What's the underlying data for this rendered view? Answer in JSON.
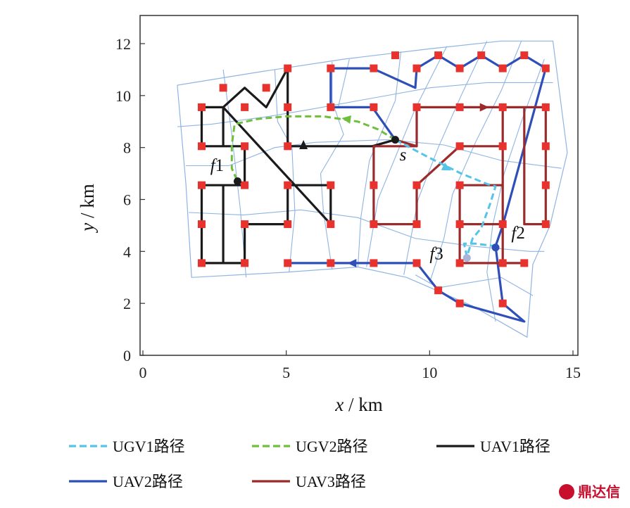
{
  "chart_data": {
    "type": "line",
    "xlabel": "x / km",
    "ylabel": "y / km",
    "xlim": [
      0,
      15
    ],
    "ylim": [
      0,
      13
    ],
    "xticks": [
      0,
      5,
      10,
      15
    ],
    "yticks": [
      0,
      2,
      4,
      6,
      8,
      10,
      12
    ],
    "grid": false,
    "legend_position": "bottom",
    "colors": {
      "mesh": "#8fb4e3",
      "waypoint": "#e8322d",
      "ugv1": "#56c3e8",
      "ugv2": "#6fbf3c",
      "uav1": "#1a1a1a",
      "uav2": "#2f4fb8",
      "uav3": "#9b2b2b"
    },
    "mesh": {
      "polygons": [
        [
          [
            1.2,
            10.4
          ],
          [
            4,
            10.9
          ],
          [
            7,
            11.4
          ],
          [
            10,
            11.8
          ],
          [
            12.5,
            12.1
          ],
          [
            14.3,
            12.1
          ],
          [
            14.8,
            7.8
          ],
          [
            14.2,
            5
          ],
          [
            13.6,
            3.5
          ],
          [
            13.4,
            0.7
          ],
          [
            11.5,
            1.9
          ],
          [
            9.2,
            3
          ],
          [
            7.5,
            3.4
          ],
          [
            5,
            3.2
          ],
          [
            1.7,
            3
          ],
          [
            1.5,
            6.6
          ],
          [
            1.2,
            10.4
          ]
        ]
      ],
      "polylines": [
        [
          [
            1.2,
            8.8
          ],
          [
            2.4,
            8.9
          ],
          [
            4.4,
            9.2
          ],
          [
            6,
            9.5
          ],
          [
            8,
            9.9
          ],
          [
            10,
            10.3
          ],
          [
            12,
            10.5
          ],
          [
            14.3,
            10.5
          ]
        ],
        [
          [
            1.5,
            7.3
          ],
          [
            3,
            7.3
          ],
          [
            4.6,
            8
          ],
          [
            6,
            8.2
          ],
          [
            8.5,
            8.3
          ],
          [
            10.5,
            8.1
          ],
          [
            12.5,
            7.5
          ],
          [
            14.6,
            7.2
          ]
        ],
        [
          [
            1.6,
            5.5
          ],
          [
            3.5,
            5.4
          ],
          [
            5.5,
            5.6
          ],
          [
            7.5,
            5.3
          ],
          [
            9.5,
            4.5
          ],
          [
            11.5,
            4.2
          ],
          [
            13.5,
            4
          ],
          [
            14,
            4
          ]
        ],
        [
          [
            2.8,
            11
          ],
          [
            3.1,
            8.5
          ],
          [
            3.4,
            5.6
          ],
          [
            3.6,
            3
          ]
        ],
        [
          [
            4.6,
            11
          ],
          [
            4.7,
            9
          ],
          [
            5.2,
            8
          ],
          [
            5.3,
            5.5
          ],
          [
            5.1,
            3.2
          ]
        ],
        [
          [
            6.6,
            11.3
          ],
          [
            6.6,
            9.8
          ],
          [
            7,
            8.5
          ],
          [
            6.2,
            7
          ],
          [
            6.3,
            5.5
          ],
          [
            6.6,
            3.3
          ]
        ],
        [
          [
            7.2,
            11.4
          ],
          [
            6.8,
            9.5
          ]
        ],
        [
          [
            9,
            11.7
          ],
          [
            8.8,
            9.8
          ],
          [
            7.9,
            7.5
          ],
          [
            7.6,
            5.3
          ],
          [
            7.5,
            3.4
          ]
        ],
        [
          [
            10.6,
            11.9
          ],
          [
            9.5,
            9.5
          ],
          [
            8.2,
            6
          ],
          [
            7.8,
            3.4
          ]
        ],
        [
          [
            12,
            12.1
          ],
          [
            11.1,
            10
          ],
          [
            10.3,
            8
          ],
          [
            9.6,
            6
          ],
          [
            9.1,
            3.1
          ]
        ],
        [
          [
            13.2,
            12.1
          ],
          [
            12.5,
            10.2
          ],
          [
            11.6,
            8.2
          ],
          [
            10.8,
            6.2
          ],
          [
            10.5,
            4.5
          ],
          [
            10,
            2.8
          ]
        ],
        [
          [
            14,
            11.4
          ],
          [
            13.2,
            9
          ],
          [
            12.6,
            7
          ],
          [
            12.2,
            5
          ],
          [
            12,
            3.2
          ],
          [
            12.3,
            1.3
          ]
        ],
        [
          [
            9.5,
            3.1
          ],
          [
            10.3,
            2.6
          ],
          [
            12.5,
            3
          ],
          [
            13.6,
            2.3
          ]
        ]
      ]
    },
    "series": [
      {
        "name": "UGV1路径",
        "style": "dashed",
        "arrows": [
          [
            10.6,
            7.2
          ]
        ],
        "points": [
          [
            8.8,
            8.3
          ],
          [
            10,
            7.6
          ],
          [
            11.1,
            7.0
          ],
          [
            12,
            6.6
          ],
          [
            12.3,
            6.5
          ],
          [
            12.1,
            5.8
          ],
          [
            11.8,
            4.9
          ],
          [
            11.5,
            4.5
          ],
          [
            11.3,
            3.8
          ],
          [
            11.2,
            4.3
          ],
          [
            11.6,
            4.3
          ],
          [
            12.3,
            4.2
          ]
        ]
      },
      {
        "name": "UGV2路径",
        "style": "dashed",
        "arrows": [
          [
            7.1,
            9.1
          ]
        ],
        "points": [
          [
            8.8,
            8.3
          ],
          [
            8.2,
            8.7
          ],
          [
            7.5,
            9.0
          ],
          [
            6.3,
            9.2
          ],
          [
            5.0,
            9.2
          ],
          [
            4.0,
            9.1
          ],
          [
            3.2,
            8.9
          ],
          [
            3.1,
            8.1
          ],
          [
            3.1,
            7.2
          ],
          [
            3.3,
            6.7
          ]
        ]
      },
      {
        "name": "UAV1路径",
        "style": "solid",
        "arrows": [
          [
            5.6,
            8.1
          ]
        ],
        "points": [
          [
            8.8,
            8.3
          ],
          [
            8.0,
            8.05
          ],
          [
            5.05,
            8.05
          ],
          [
            5.05,
            9.55
          ],
          [
            5.05,
            11.05
          ],
          [
            4.3,
            9.55
          ],
          [
            3.55,
            10.3
          ],
          [
            2.8,
            9.55
          ],
          [
            2.8,
            8.05
          ],
          [
            3.55,
            8.05
          ],
          [
            3.55,
            6.55
          ],
          [
            2.8,
            6.55
          ],
          [
            2.8,
            3.55
          ],
          [
            3.55,
            3.55
          ],
          [
            3.55,
            5.05
          ],
          [
            5.05,
            5.05
          ],
          [
            5.05,
            6.55
          ],
          [
            6.55,
            6.55
          ],
          [
            6.55,
            5.05
          ],
          [
            2.8,
            9.55
          ],
          [
            2.05,
            9.55
          ],
          [
            2.05,
            8.05
          ],
          [
            3.55,
            8.05
          ],
          [
            3.55,
            6.55
          ],
          [
            2.05,
            6.55
          ],
          [
            2.05,
            3.55
          ],
          [
            3.55,
            3.55
          ]
        ]
      },
      {
        "name": "UAV2路径",
        "style": "solid",
        "arrows": [
          [
            7.3,
            3.55
          ]
        ],
        "points": [
          [
            8.8,
            8.3
          ],
          [
            8.0,
            9.55
          ],
          [
            6.55,
            9.55
          ],
          [
            6.55,
            11.05
          ],
          [
            8.0,
            11.05
          ],
          [
            9.5,
            10.3
          ],
          [
            9.55,
            11.05
          ],
          [
            10.3,
            11.55
          ],
          [
            11.05,
            11.05
          ],
          [
            11.8,
            11.55
          ],
          [
            12.55,
            11.05
          ],
          [
            13.3,
            11.55
          ],
          [
            14.05,
            11.05
          ],
          [
            12.55,
            5.0
          ],
          [
            12.3,
            4.2
          ],
          [
            12.55,
            2.0
          ],
          [
            13.3,
            1.3
          ],
          [
            11.05,
            2.0
          ],
          [
            10.3,
            2.5
          ],
          [
            9.55,
            3.55
          ],
          [
            8.0,
            3.55
          ],
          [
            5.05,
            3.55
          ]
        ]
      },
      {
        "name": "UAV3路径",
        "style": "solid",
        "arrows": [
          [
            11.9,
            9.55
          ]
        ],
        "points": [
          [
            8.8,
            8.3
          ],
          [
            9.55,
            8.05
          ],
          [
            9.55,
            9.55
          ],
          [
            14.05,
            9.55
          ],
          [
            14.05,
            5.05
          ],
          [
            13.3,
            5.05
          ],
          [
            13.3,
            9.55
          ],
          [
            12.55,
            9.55
          ],
          [
            12.55,
            5.05
          ],
          [
            11.05,
            5.05
          ],
          [
            11.05,
            6.55
          ],
          [
            12.55,
            6.55
          ],
          [
            12.55,
            8.05
          ],
          [
            11.05,
            8.05
          ],
          [
            9.55,
            6.55
          ],
          [
            9.55,
            5.05
          ],
          [
            8.05,
            5.05
          ],
          [
            8.05,
            8.05
          ],
          [
            9.55,
            8.05
          ],
          [
            8.05,
            8.05
          ],
          [
            8.05,
            5.05
          ],
          [
            9.55,
            5.05
          ],
          [
            9.55,
            6.55
          ],
          [
            11.05,
            8.05
          ],
          [
            12.55,
            8.05
          ],
          [
            12.55,
            3.55
          ],
          [
            13.3,
            3.55
          ],
          [
            11.05,
            3.55
          ],
          [
            11.05,
            5.05
          ],
          [
            11.05,
            3.55
          ]
        ]
      }
    ],
    "waypoints": [
      [
        2.05,
        9.55
      ],
      [
        2.8,
        10.3
      ],
      [
        3.55,
        9.55
      ],
      [
        4.3,
        10.3
      ],
      [
        5.05,
        11.05
      ],
      [
        5.05,
        9.55
      ],
      [
        2.05,
        8.05
      ],
      [
        3.55,
        8.05
      ],
      [
        5.05,
        8.05
      ],
      [
        2.05,
        6.55
      ],
      [
        3.55,
        6.55
      ],
      [
        5.05,
        6.55
      ],
      [
        6.55,
        6.55
      ],
      [
        2.05,
        5.05
      ],
      [
        3.55,
        5.05
      ],
      [
        5.05,
        5.05
      ],
      [
        6.55,
        5.05
      ],
      [
        2.05,
        3.55
      ],
      [
        3.55,
        3.55
      ],
      [
        5.05,
        3.55
      ],
      [
        6.55,
        3.55
      ],
      [
        8.05,
        3.55
      ],
      [
        9.55,
        3.55
      ],
      [
        6.55,
        11.05
      ],
      [
        8.05,
        11.05
      ],
      [
        6.55,
        9.55
      ],
      [
        8.05,
        9.55
      ],
      [
        8.8,
        11.55
      ],
      [
        9.55,
        11.05
      ],
      [
        10.3,
        11.55
      ],
      [
        11.05,
        11.05
      ],
      [
        11.8,
        11.55
      ],
      [
        12.55,
        11.05
      ],
      [
        13.3,
        11.55
      ],
      [
        14.05,
        11.05
      ],
      [
        9.55,
        9.55
      ],
      [
        11.05,
        9.55
      ],
      [
        12.55,
        9.55
      ],
      [
        14.05,
        9.55
      ],
      [
        11.05,
        8.05
      ],
      [
        12.55,
        8.05
      ],
      [
        14.05,
        8.05
      ],
      [
        8.05,
        6.55
      ],
      [
        9.55,
        6.55
      ],
      [
        11.05,
        6.55
      ],
      [
        14.05,
        6.55
      ],
      [
        8.05,
        5.05
      ],
      [
        9.55,
        5.05
      ],
      [
        11.05,
        5.05
      ],
      [
        12.55,
        5.05
      ],
      [
        14.05,
        5.05
      ],
      [
        11.05,
        3.55
      ],
      [
        12.55,
        3.55
      ],
      [
        13.3,
        3.55
      ],
      [
        10.3,
        2.5
      ],
      [
        11.05,
        2.0
      ],
      [
        12.55,
        2.0
      ]
    ],
    "markers": [
      {
        "label": "s",
        "x": 8.8,
        "y": 8.3,
        "color": "#1a1a1a",
        "text_x": 8.95,
        "text_y": 7.5
      },
      {
        "label": "f1",
        "x": 3.3,
        "y": 6.7,
        "color": "#1a1a1a",
        "text_x": 2.35,
        "text_y": 7.1
      },
      {
        "label": "f2",
        "x": 12.3,
        "y": 4.15,
        "color": "#2f4fb8",
        "text_x": 12.85,
        "text_y": 4.5
      },
      {
        "label": "f3",
        "x": 11.3,
        "y": 3.75,
        "color": "#a9b4d8",
        "text_x": 10.0,
        "text_y": 3.7
      }
    ],
    "legend": [
      {
        "name": "UGV1路径",
        "color": "#56c3e8",
        "style": "dashed"
      },
      {
        "name": "UGV2路径",
        "color": "#6fbf3c",
        "style": "dashed"
      },
      {
        "name": "UAV1路径",
        "color": "#1a1a1a",
        "style": "solid"
      },
      {
        "name": "UAV2路径",
        "color": "#2f4fb8",
        "style": "solid"
      },
      {
        "name": "UAV3路径",
        "color": "#9b2b2b",
        "style": "solid"
      }
    ]
  },
  "watermark": {
    "text": "鼎达信"
  }
}
